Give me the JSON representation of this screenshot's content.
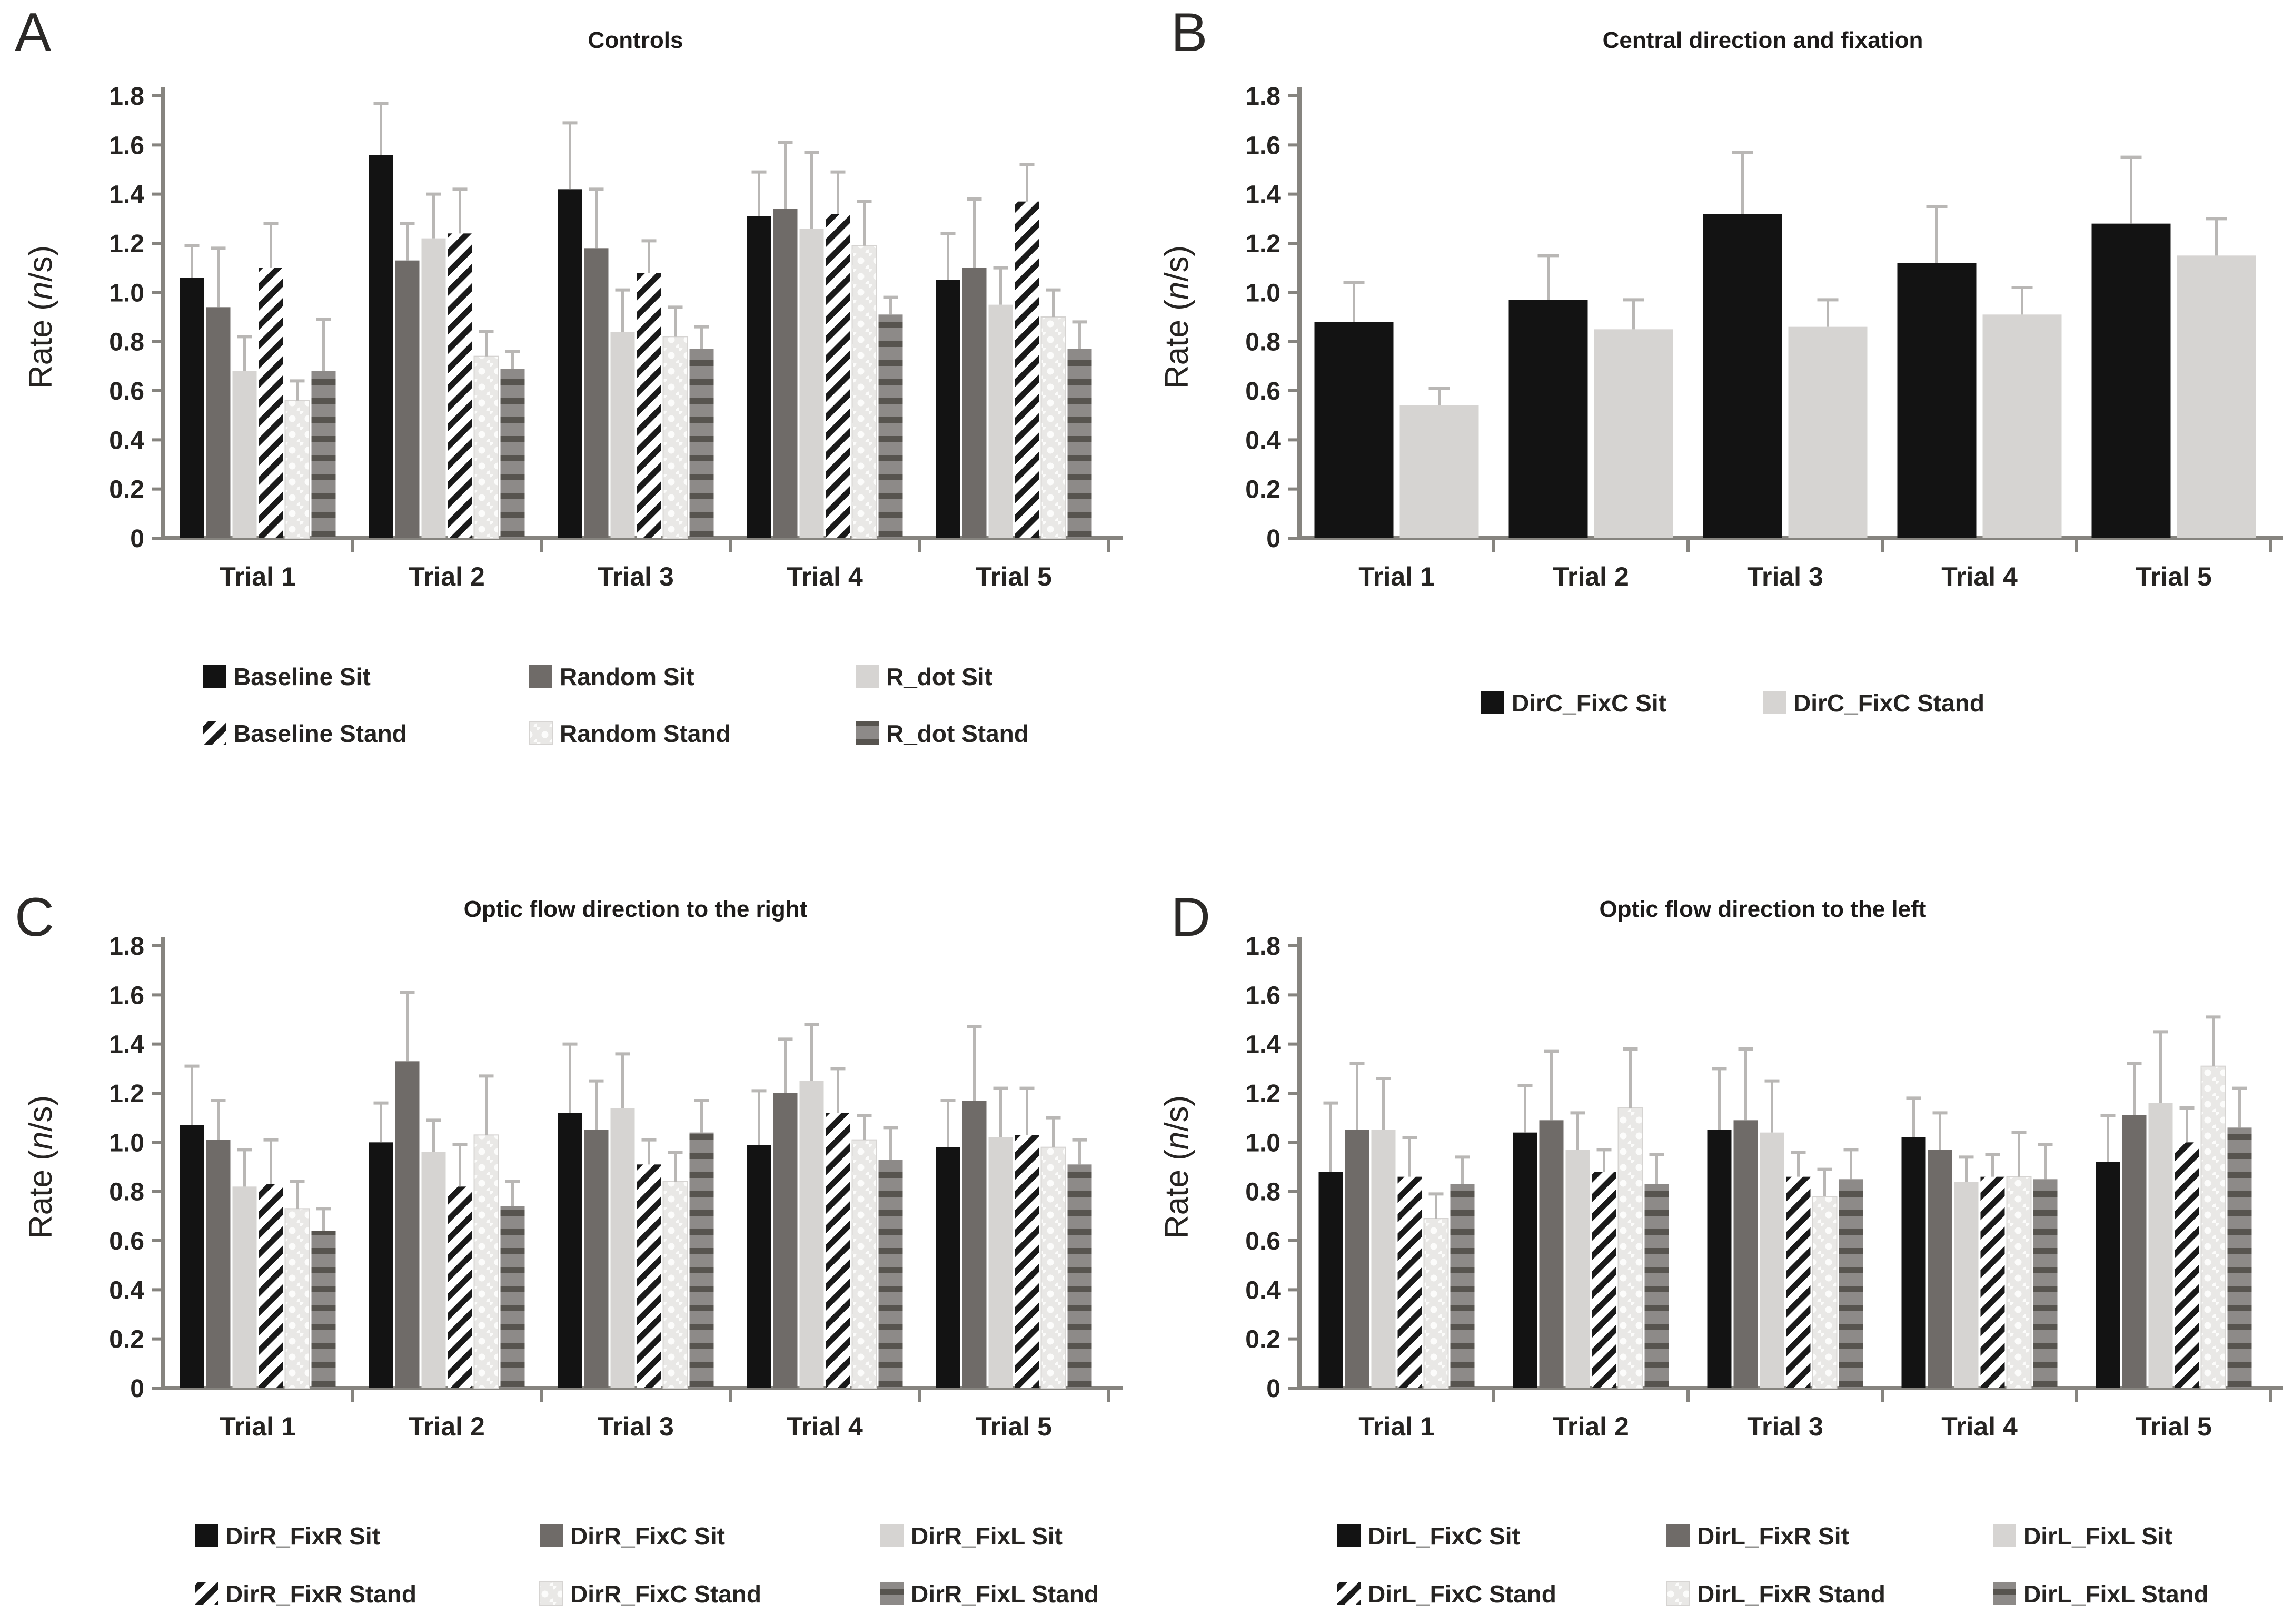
{
  "y_axis": {
    "pre": "Rate (",
    "italic": "n",
    "post": "/s)"
  },
  "colors": {
    "background": "#ffffff",
    "axis": "#86847f",
    "text": "#262422",
    "error_bar": "#b9b7b5",
    "series_black": "#131313",
    "series_darkgray": "#6f6b68",
    "series_lightgray": "#d6d4d2",
    "hatch_fg": "#1a1a1a",
    "hatch_bg": "#ffffff",
    "dot_bg": "#e9e8e6",
    "dot_fg": "#fcfcfb",
    "dot_border": "#d6d4d2",
    "hlines_bg": "#8d8a88",
    "hlines_fg": "#57544f"
  },
  "chart_data": [
    {
      "type": "bar",
      "letter": "A",
      "title": "Controls",
      "ylabel": "Rate (n/s)",
      "xlabel": "",
      "ylim": [
        0,
        1.8
      ],
      "grid": false,
      "legend_position": "bottom",
      "yticks": [
        "1.8",
        "1.6",
        "1.4",
        "1.2",
        "1.0",
        "0.8",
        "0.6",
        "0.4",
        "0.2",
        "0"
      ],
      "categories": [
        "Trial 1",
        "Trial 2",
        "Trial 3",
        "Trial 4",
        "Trial 5"
      ],
      "series": [
        {
          "name": "Baseline Sit",
          "style": "black",
          "values": [
            1.06,
            1.56,
            1.42,
            1.31,
            1.05
          ],
          "errors": [
            0.13,
            0.21,
            0.27,
            0.18,
            0.19
          ]
        },
        {
          "name": "Random Sit",
          "style": "darkgray",
          "values": [
            0.94,
            1.13,
            1.18,
            1.34,
            1.1
          ],
          "errors": [
            0.24,
            0.15,
            0.24,
            0.27,
            0.28
          ]
        },
        {
          "name": "R_dot Sit",
          "style": "lightgray",
          "values": [
            0.68,
            1.22,
            0.84,
            1.26,
            0.95
          ],
          "errors": [
            0.14,
            0.18,
            0.17,
            0.31,
            0.15
          ]
        },
        {
          "name": "Baseline Stand",
          "style": "hatch",
          "values": [
            1.1,
            1.24,
            1.08,
            1.32,
            1.37
          ],
          "errors": [
            0.18,
            0.18,
            0.13,
            0.17,
            0.15
          ]
        },
        {
          "name": "Random Stand",
          "style": "dot",
          "values": [
            0.56,
            0.74,
            0.82,
            1.19,
            0.9
          ],
          "errors": [
            0.08,
            0.1,
            0.12,
            0.18,
            0.11
          ]
        },
        {
          "name": "R_dot Stand",
          "style": "hlines",
          "values": [
            0.68,
            0.69,
            0.77,
            0.91,
            0.77
          ],
          "errors": [
            0.21,
            0.07,
            0.09,
            0.07,
            0.11
          ]
        }
      ]
    },
    {
      "type": "bar",
      "letter": "B",
      "title": "Central direction and fixation",
      "ylabel": "Rate (n/s)",
      "xlabel": "",
      "ylim": [
        0,
        1.8
      ],
      "grid": false,
      "legend_position": "bottom",
      "yticks": [
        "1.8",
        "1.6",
        "1.4",
        "1.2",
        "1.0",
        "0.8",
        "0.6",
        "0.4",
        "0.2",
        "0"
      ],
      "categories": [
        "Trial 1",
        "Trial 2",
        "Trial 3",
        "Trial 4",
        "Trial 5"
      ],
      "series": [
        {
          "name": "DirC_FixC Sit",
          "style": "black",
          "values": [
            0.88,
            0.97,
            1.32,
            1.12,
            1.28
          ],
          "errors": [
            0.16,
            0.18,
            0.25,
            0.23,
            0.27
          ]
        },
        {
          "name": "DirC_FixC Stand",
          "style": "lightgray",
          "values": [
            0.54,
            0.85,
            0.86,
            0.91,
            1.15
          ],
          "errors": [
            0.07,
            0.12,
            0.11,
            0.11,
            0.15
          ]
        }
      ]
    },
    {
      "type": "bar",
      "letter": "C",
      "title": "Optic flow direction to the right",
      "ylabel": "Rate (n/s)",
      "xlabel": "",
      "ylim": [
        0,
        1.8
      ],
      "grid": false,
      "legend_position": "bottom",
      "yticks": [
        "1.8",
        "1.6",
        "1.4",
        "1.2",
        "1.0",
        "0.8",
        "0.6",
        "0.4",
        "0.2",
        "0"
      ],
      "categories": [
        "Trial 1",
        "Trial 2",
        "Trial 3",
        "Trial 4",
        "Trial 5"
      ],
      "series": [
        {
          "name": "DirR_FixR Sit",
          "style": "black",
          "values": [
            1.07,
            1.0,
            1.12,
            0.99,
            0.98
          ],
          "errors": [
            0.24,
            0.16,
            0.28,
            0.22,
            0.19
          ]
        },
        {
          "name": "DirR_FixC Sit",
          "style": "darkgray",
          "values": [
            1.01,
            1.33,
            1.05,
            1.2,
            1.17
          ],
          "errors": [
            0.16,
            0.28,
            0.2,
            0.22,
            0.3
          ]
        },
        {
          "name": "DirR_FixL Sit",
          "style": "lightgray",
          "values": [
            0.82,
            0.96,
            1.14,
            1.25,
            1.02
          ],
          "errors": [
            0.15,
            0.13,
            0.22,
            0.23,
            0.2
          ]
        },
        {
          "name": "DirR_FixR Stand",
          "style": "hatch",
          "values": [
            0.83,
            0.82,
            0.91,
            1.12,
            1.03
          ],
          "errors": [
            0.18,
            0.17,
            0.1,
            0.18,
            0.19
          ]
        },
        {
          "name": "DirR_FixC Stand",
          "style": "dot",
          "values": [
            0.73,
            1.03,
            0.84,
            1.01,
            0.98
          ],
          "errors": [
            0.11,
            0.24,
            0.12,
            0.1,
            0.12
          ]
        },
        {
          "name": "DirR_FixL Stand",
          "style": "hlines",
          "values": [
            0.64,
            0.74,
            1.04,
            0.93,
            0.91
          ],
          "errors": [
            0.09,
            0.1,
            0.13,
            0.13,
            0.1
          ]
        }
      ]
    },
    {
      "type": "bar",
      "letter": "D",
      "title": "Optic flow direction to the left",
      "ylabel": "Rate (n/s)",
      "xlabel": "",
      "ylim": [
        0,
        1.8
      ],
      "grid": false,
      "legend_position": "bottom",
      "yticks": [
        "1.8",
        "1.6",
        "1.4",
        "1.2",
        "1.0",
        "0.8",
        "0.6",
        "0.4",
        "0.2",
        "0"
      ],
      "categories": [
        "Trial 1",
        "Trial 2",
        "Trial 3",
        "Trial 4",
        "Trial 5"
      ],
      "series": [
        {
          "name": "DirL_FixC Sit",
          "style": "black",
          "values": [
            0.88,
            1.04,
            1.05,
            1.02,
            0.92
          ],
          "errors": [
            0.28,
            0.19,
            0.25,
            0.16,
            0.19
          ]
        },
        {
          "name": "DirL_FixR Sit",
          "style": "darkgray",
          "values": [
            1.05,
            1.09,
            1.09,
            0.97,
            1.11
          ],
          "errors": [
            0.27,
            0.28,
            0.29,
            0.15,
            0.21
          ]
        },
        {
          "name": "DirL_FixL Sit",
          "style": "lightgray",
          "values": [
            1.05,
            0.97,
            1.04,
            0.84,
            1.16
          ],
          "errors": [
            0.21,
            0.15,
            0.21,
            0.1,
            0.29
          ]
        },
        {
          "name": "DirL_FixC Stand",
          "style": "hatch",
          "values": [
            0.86,
            0.88,
            0.86,
            0.86,
            1.0
          ],
          "errors": [
            0.16,
            0.09,
            0.1,
            0.09,
            0.14
          ]
        },
        {
          "name": "DirL_FixR Stand",
          "style": "dot",
          "values": [
            0.69,
            1.14,
            0.78,
            0.86,
            1.31
          ],
          "errors": [
            0.1,
            0.24,
            0.11,
            0.18,
            0.2
          ]
        },
        {
          "name": "DirL_FixL Stand",
          "style": "hlines",
          "values": [
            0.83,
            0.83,
            0.85,
            0.85,
            1.06
          ],
          "errors": [
            0.11,
            0.12,
            0.12,
            0.14,
            0.16
          ]
        }
      ]
    }
  ]
}
